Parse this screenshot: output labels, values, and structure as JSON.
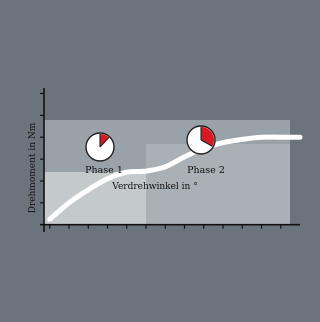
{
  "chart_data": {
    "type": "line",
    "xlabel": "Verdrehwinkel in °",
    "ylabel": "Drehmoment in Nm",
    "annotations": [
      {
        "label": "Phase 1",
        "icon": "clock-icon",
        "fill": 0.12
      },
      {
        "label": "Phase 2",
        "icon": "clock-icon",
        "fill": 0.33
      }
    ],
    "x": [
      0,
      1,
      2,
      3,
      4,
      5,
      6,
      7,
      8,
      9,
      10,
      11,
      12,
      13
    ],
    "y": [
      0.5,
      2.0,
      3.2,
      4.2,
      4.8,
      4.9,
      5.3,
      6.2,
      7.0,
      7.5,
      7.8,
      8.0,
      8.0,
      8.0
    ],
    "xlim": [
      -0.3,
      13
    ],
    "ylim": [
      -0.3,
      12.5
    ],
    "x_ticks": [
      0,
      1,
      2,
      3,
      4,
      5,
      6,
      7,
      8,
      9,
      10,
      11,
      12
    ],
    "y_ticks": [
      0,
      2,
      4,
      6,
      8,
      10,
      12
    ],
    "legend": "none",
    "colors": {
      "background": "#6b747c",
      "outer_band": "#99a2a8",
      "phase1_band": "#c4c9cc",
      "phase2_band": "#a9b1b6",
      "curve": "#ffffff",
      "clock_face": "#ffffff",
      "clock_wedge": "#d51b21",
      "axis": "#111111"
    }
  }
}
